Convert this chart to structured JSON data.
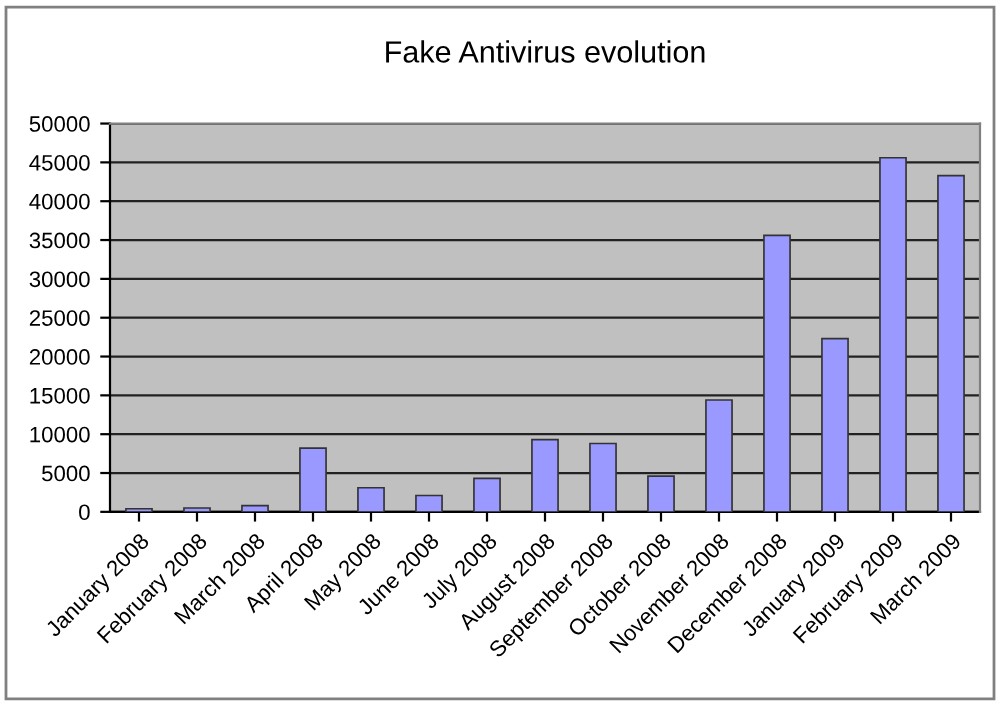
{
  "chart_data": {
    "type": "bar",
    "title": "Fake Antivirus evolution",
    "categories": [
      "January 2008",
      "February 2008",
      "March 2008",
      "April 2008",
      "May 2008",
      "June 2008",
      "July 2008",
      "August 2008",
      "September 2008",
      "October 2008",
      "November 2008",
      "December 2008",
      "January 2009",
      "February 2009",
      "March 2009"
    ],
    "values": [
      400,
      500,
      800,
      8200,
      3100,
      2100,
      4300,
      9300,
      8800,
      4600,
      14400,
      35600,
      22300,
      45600,
      43300
    ],
    "color": "#9999ff",
    "ylim": [
      0,
      50000
    ],
    "yticks": [
      0,
      5000,
      10000,
      15000,
      20000,
      25000,
      30000,
      35000,
      40000,
      45000,
      50000
    ],
    "grid": "y",
    "legend": false
  }
}
